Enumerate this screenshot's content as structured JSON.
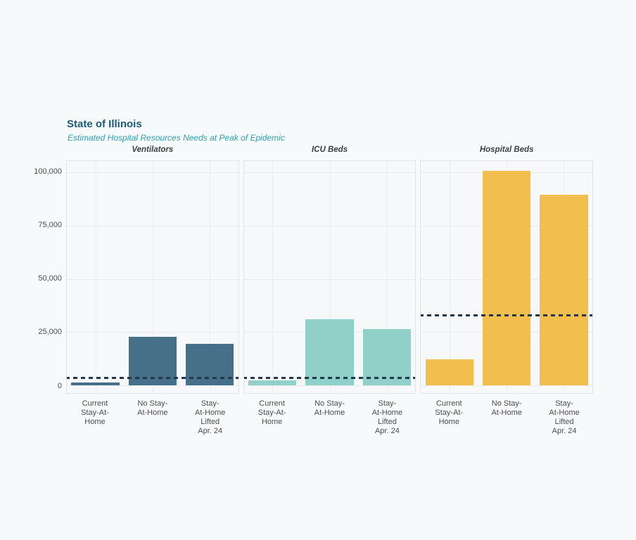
{
  "page": {
    "background": "#f7fafb"
  },
  "header": {
    "title": "State of Illinois",
    "subtitle": "Estimated Hospital Resources Needs at Peak of Epidemic",
    "title_color": "#1d5a78",
    "subtitle_color": "#2d9fb0"
  },
  "chart_data": {
    "type": "bar",
    "title": "State of Illinois",
    "subtitle": "Estimated Hospital Resources Needs at Peak of Epidemic",
    "categories": [
      "Current Stay-At-Home",
      "No Stay-At-Home",
      "Stay-At-Home Lifted Apr. 24"
    ],
    "category_label_lines": [
      [
        "Current",
        "Stay-At-",
        "Home"
      ],
      [
        "No Stay-",
        "At-Home"
      ],
      [
        "Stay-",
        "At-Home",
        "Lifted",
        "Apr. 24"
      ]
    ],
    "facets": [
      {
        "title": "Ventilators",
        "bar_color": "#46708a",
        "values": [
          1500,
          22800,
          19500
        ],
        "capacity_line": 3500
      },
      {
        "title": "ICU Beds",
        "bar_color": "#8fd0c9",
        "values": [
          2200,
          31000,
          26300
        ],
        "capacity_line": 3600
      },
      {
        "title": "Hospital Beds",
        "bar_color": "#f2be4e",
        "values": [
          12300,
          100700,
          89500
        ],
        "capacity_line": 33000
      }
    ],
    "y_ticks": [
      0,
      25000,
      50000,
      75000,
      100000
    ],
    "y_tick_labels": [
      "0",
      "25,000",
      "50,000",
      "75,000",
      "100,000"
    ],
    "ylim": [
      -3600,
      105300
    ],
    "grid": true,
    "legend": false,
    "reference_line_style": "dashed",
    "reference_line_color": "#22384a"
  }
}
